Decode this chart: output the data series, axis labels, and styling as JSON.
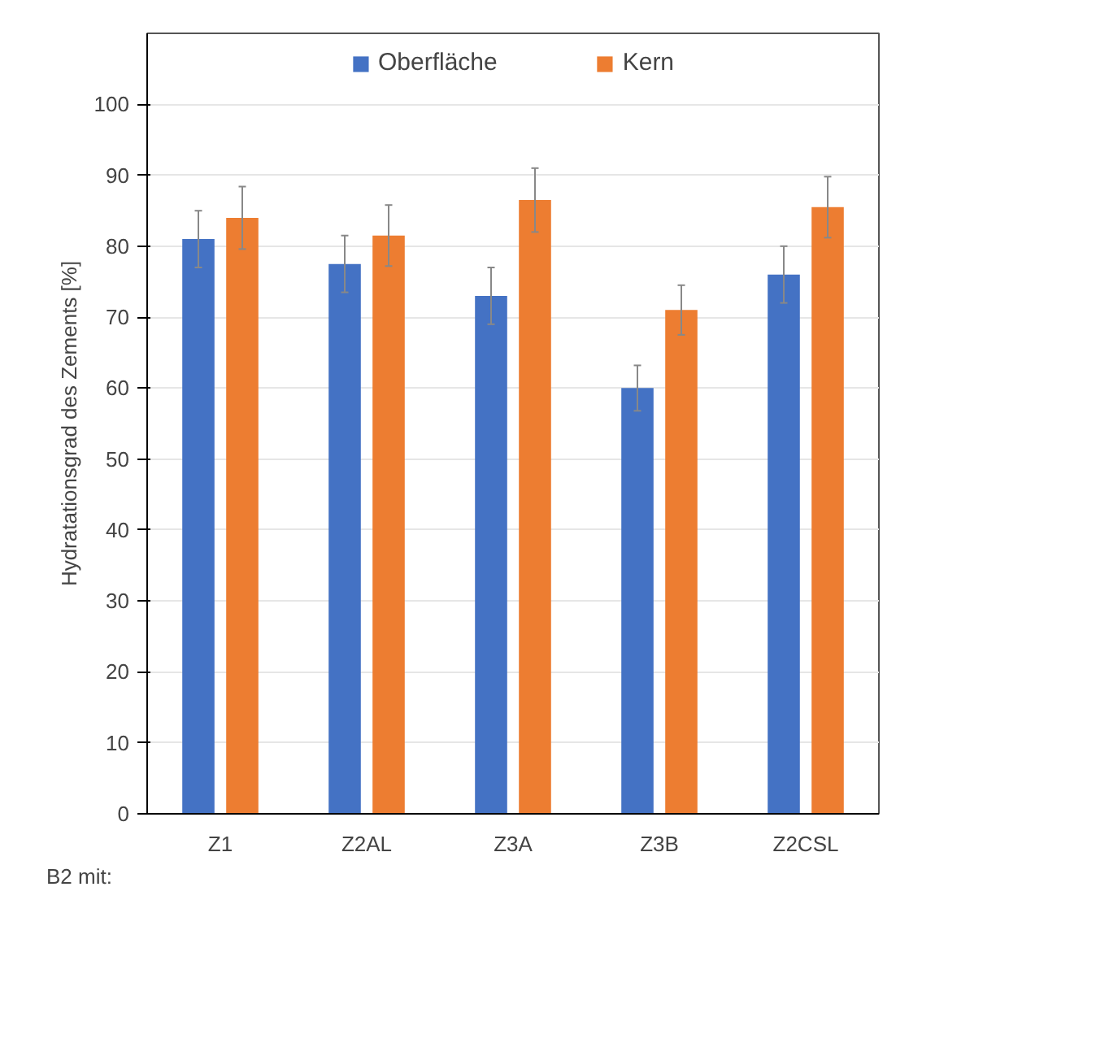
{
  "chart_data": {
    "type": "bar",
    "xlabel": "B2 mit:",
    "ylabel": "Hydratationsgrad des Zements [%]",
    "categories": [
      "Z1",
      "Z2AL",
      "Z3A",
      "Z3B",
      "Z2CSL"
    ],
    "series": [
      {
        "name": "Oberfläche",
        "color": "#4472c4",
        "values": [
          81,
          77.5,
          73,
          60,
          76
        ],
        "errors": [
          4,
          4,
          4,
          3.2,
          4
        ]
      },
      {
        "name": "Kern",
        "color": "#ed7d31",
        "values": [
          84,
          81.5,
          86.5,
          71,
          85.5
        ],
        "errors": [
          4.4,
          4.3,
          4.5,
          3.5,
          4.3
        ]
      }
    ],
    "ylim": [
      0,
      110
    ],
    "yticks": [
      0,
      10,
      20,
      30,
      40,
      50,
      60,
      70,
      80,
      90,
      100
    ],
    "grid": "y",
    "legend": "top"
  }
}
